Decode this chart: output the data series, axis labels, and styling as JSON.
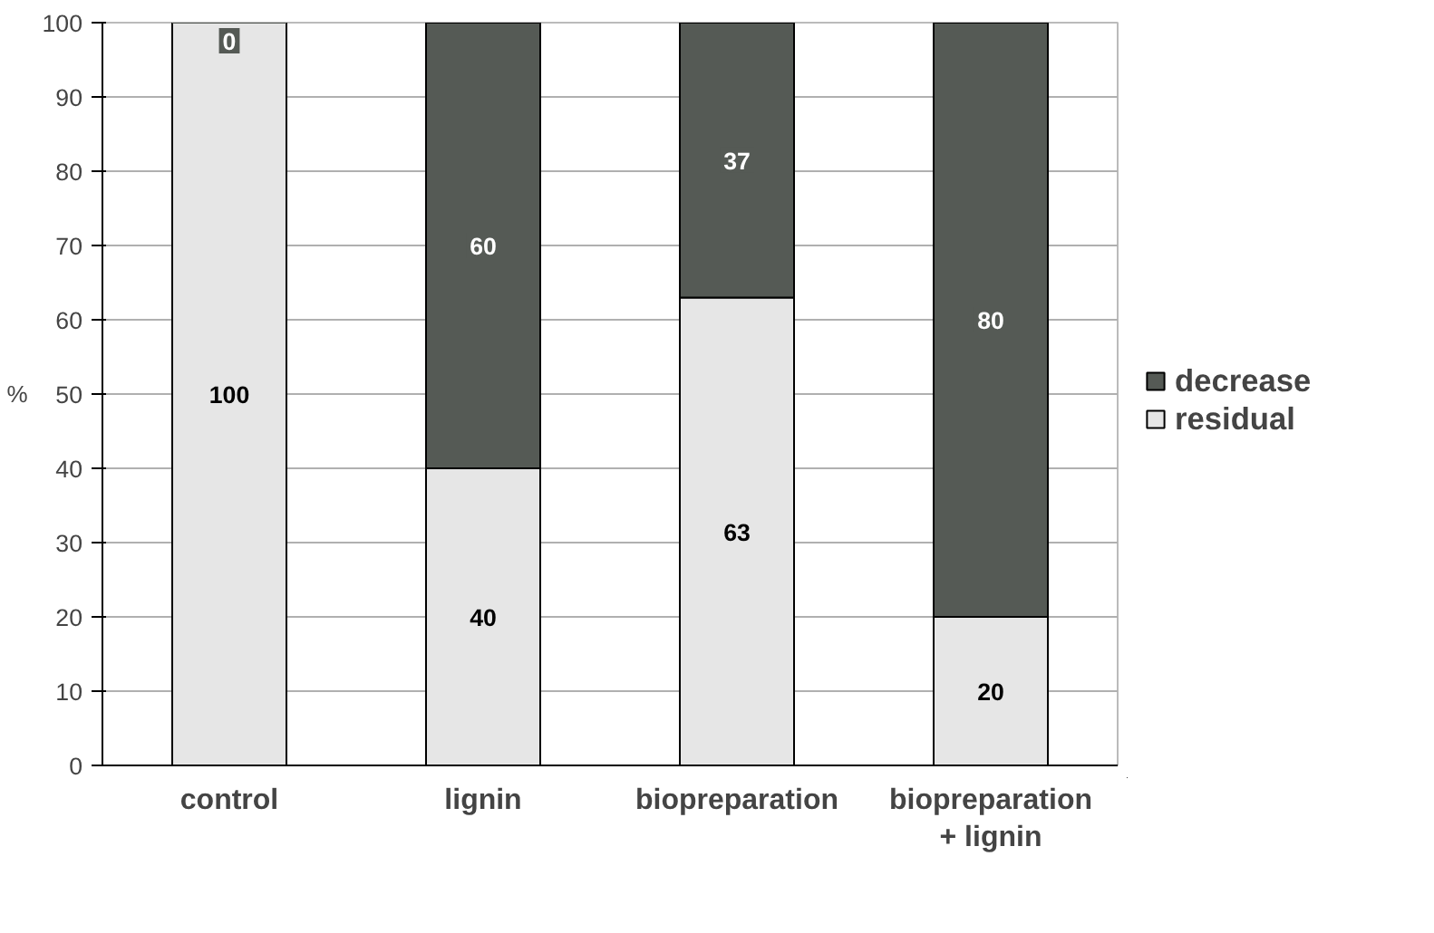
{
  "chart_data": {
    "type": "bar",
    "stacked": true,
    "ylabel": "%",
    "categories": [
      "control",
      "lignin",
      "biopreparation",
      "biopreparation\n+ lignin"
    ],
    "series": [
      {
        "name": "residual",
        "color": "#e6e6e6",
        "values": [
          100,
          40,
          63,
          20
        ]
      },
      {
        "name": "decrease",
        "color": "#555a55",
        "values": [
          0,
          60,
          37,
          80
        ]
      }
    ],
    "ylim": [
      0,
      100
    ],
    "yticks": [
      0,
      10,
      20,
      30,
      40,
      50,
      60,
      70,
      80,
      90,
      100
    ],
    "grid": "y",
    "legend": "right",
    "data_labels": true
  }
}
